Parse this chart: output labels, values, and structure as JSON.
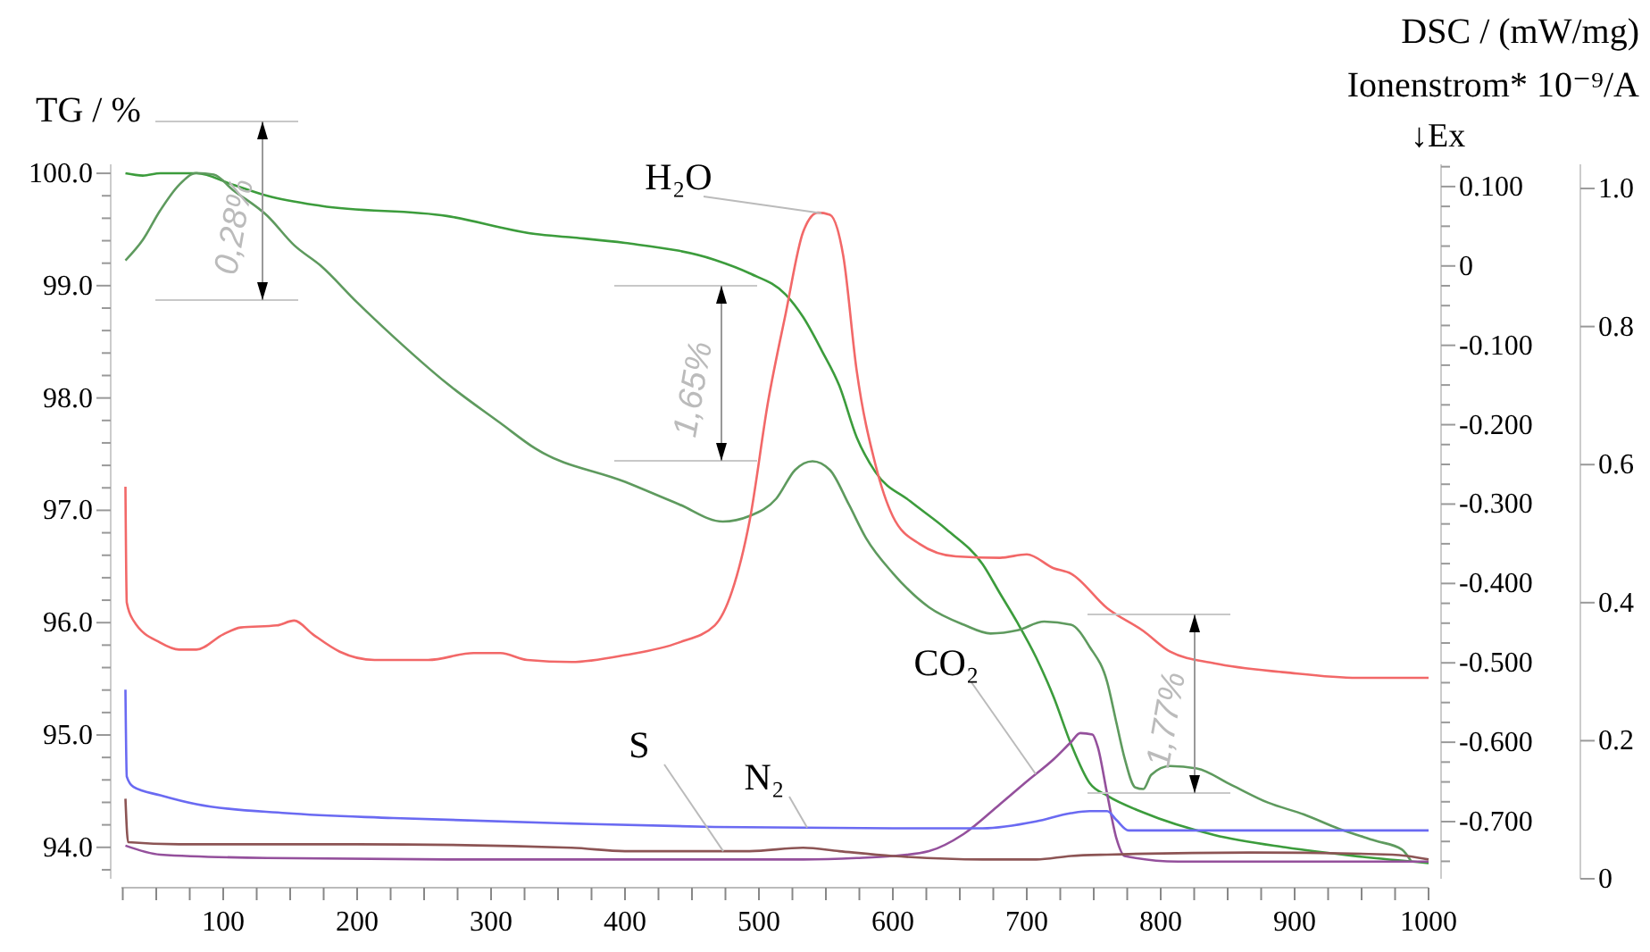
{
  "chart_data": {
    "type": "line",
    "ylabel": "TG / %",
    "y2label": "DSC / (mW/mg)",
    "y3label": "Ionenstrom* 10⁻⁹/A",
    "xlim": [
      24,
      1000
    ],
    "ylim": [
      93.72,
      100.08
    ],
    "y2lim": [
      -0.772,
      0.128
    ],
    "y3lim": [
      0,
      1.035
    ],
    "xticks": [
      {
        "value": 25,
        "label": null
      },
      {
        "value": 50,
        "label": null
      },
      {
        "value": 75,
        "label": null
      },
      100,
      {
        "value": 125,
        "label": null
      },
      {
        "value": 150,
        "label": null
      },
      {
        "value": 175,
        "label": null
      },
      200,
      {
        "value": 225,
        "label": null
      },
      {
        "value": 250,
        "label": null
      },
      {
        "value": 275,
        "label": null
      },
      300,
      {
        "value": 325,
        "label": null
      },
      {
        "value": 350,
        "label": null
      },
      {
        "value": 375,
        "label": null
      },
      400,
      {
        "value": 425,
        "label": null
      },
      {
        "value": 450,
        "label": null
      },
      {
        "value": 475,
        "label": null
      },
      500,
      {
        "value": 525,
        "label": null
      },
      {
        "value": 550,
        "label": null
      },
      {
        "value": 575,
        "label": null
      },
      600,
      {
        "value": 625,
        "label": null
      },
      {
        "value": 650,
        "label": null
      },
      {
        "value": 675,
        "label": null
      },
      700,
      {
        "value": 725,
        "label": null
      },
      {
        "value": 750,
        "label": null
      },
      {
        "value": 775,
        "label": null
      },
      800,
      {
        "value": 825,
        "label": null
      },
      {
        "value": 850,
        "label": null
      },
      {
        "value": 875,
        "label": null
      },
      900,
      {
        "value": 925,
        "label": null
      },
      {
        "value": 950,
        "label": null
      },
      {
        "value": 975,
        "label": null
      },
      1000
    ],
    "yticks": [
      {
        "value": 93.8,
        "label": null
      },
      {
        "value": 94,
        "label": "94.0"
      },
      {
        "value": 94.2,
        "label": null
      },
      {
        "value": 94.4,
        "label": null
      },
      {
        "value": 94.6,
        "label": null
      },
      {
        "value": 94.8,
        "label": null
      },
      {
        "value": 95,
        "label": "95.0"
      },
      {
        "value": 95.2,
        "label": null
      },
      {
        "value": 95.4,
        "label": null
      },
      {
        "value": 95.6,
        "label": null
      },
      {
        "value": 95.8,
        "label": null
      },
      {
        "value": 96,
        "label": "96.0"
      },
      {
        "value": 96.2,
        "label": null
      },
      {
        "value": 96.4,
        "label": null
      },
      {
        "value": 96.6,
        "label": null
      },
      {
        "value": 96.8,
        "label": null
      },
      {
        "value": 97,
        "label": "97.0"
      },
      {
        "value": 97.2,
        "label": null
      },
      {
        "value": 97.4,
        "label": null
      },
      {
        "value": 97.6,
        "label": null
      },
      {
        "value": 97.8,
        "label": null
      },
      {
        "value": 98,
        "label": "98.0"
      },
      {
        "value": 98.2,
        "label": null
      },
      {
        "value": 98.4,
        "label": null
      },
      {
        "value": 98.6,
        "label": null
      },
      {
        "value": 98.8,
        "label": null
      },
      {
        "value": 99,
        "label": "99.0"
      },
      {
        "value": 99.2,
        "label": null
      },
      {
        "value": 99.4,
        "label": null
      },
      {
        "value": 99.6,
        "label": null
      },
      {
        "value": 99.8,
        "label": null
      },
      {
        "value": 100,
        "label": "100.0"
      }
    ],
    "y2ticks": [
      {
        "value": -0.75,
        "label": null
      },
      {
        "value": -0.725,
        "label": null
      },
      {
        "value": -0.7,
        "label": "-0.700"
      },
      {
        "value": -0.675,
        "label": null
      },
      {
        "value": -0.65,
        "label": null
      },
      {
        "value": -0.625,
        "label": null
      },
      {
        "value": -0.6,
        "label": "-0.600"
      },
      {
        "value": -0.575,
        "label": null
      },
      {
        "value": -0.55,
        "label": null
      },
      {
        "value": -0.525,
        "label": null
      },
      {
        "value": -0.5,
        "label": "-0.500"
      },
      {
        "value": -0.475,
        "label": null
      },
      {
        "value": -0.45,
        "label": null
      },
      {
        "value": -0.425,
        "label": null
      },
      {
        "value": -0.4,
        "label": "-0.400"
      },
      {
        "value": -0.375,
        "label": null
      },
      {
        "value": -0.35,
        "label": null
      },
      {
        "value": -0.325,
        "label": null
      },
      {
        "value": -0.3,
        "label": "-0.300"
      },
      {
        "value": -0.275,
        "label": null
      },
      {
        "value": -0.25,
        "label": null
      },
      {
        "value": -0.225,
        "label": null
      },
      {
        "value": -0.2,
        "label": "-0.200"
      },
      {
        "value": -0.175,
        "label": null
      },
      {
        "value": -0.15,
        "label": null
      },
      {
        "value": -0.125,
        "label": null
      },
      {
        "value": -0.1,
        "label": "-0.100"
      },
      {
        "value": -0.075,
        "label": null
      },
      {
        "value": -0.05,
        "label": null
      },
      {
        "value": -0.025,
        "label": null
      },
      0,
      {
        "value": 0.025,
        "label": null
      },
      {
        "value": 0.05,
        "label": null
      },
      {
        "value": 0.075,
        "label": null
      },
      {
        "value": 0.1,
        "label": "0.100"
      },
      {
        "value": 0.125,
        "label": null
      }
    ],
    "y3ticks": [
      0,
      {
        "value": 0.2,
        "label": "0.2"
      },
      {
        "value": 0.4,
        "label": "0.4"
      },
      {
        "value": 0.6,
        "label": "0.6"
      },
      {
        "value": 0.8,
        "label": "0.8"
      },
      {
        "value": 1,
        "label": "1.0"
      }
    ],
    "series": [
      {
        "color": "#3c9c3c",
        "x": [
          27,
          40,
          53,
          80,
          107,
          133,
          173,
          267,
          333,
          360,
          400,
          467,
          493,
          520,
          533,
          547,
          560,
          573,
          587,
          613,
          640,
          667,
          680,
          693,
          707,
          720,
          733,
          747,
          760,
          787,
          840,
          893,
          947,
          1000
        ],
        "values": [
          100.0,
          99.98,
          100.0,
          100.0,
          99.9,
          99.8,
          99.71,
          99.62,
          99.46,
          99.43,
          99.38,
          99.23,
          99.11,
          98.92,
          98.72,
          98.42,
          98.11,
          97.65,
          97.34,
          97.08,
          96.83,
          96.52,
          96.26,
          96.0,
          95.69,
          95.34,
          94.92,
          94.57,
          94.46,
          94.31,
          94.11,
          94.0,
          93.92,
          93.86
        ]
      },
      {
        "color": "#5e9a5e",
        "axis": "y2",
        "x": [
          27,
          40,
          53,
          67,
          80,
          93,
          107,
          133,
          153,
          173,
          200,
          227,
          267,
          307,
          333,
          400,
          440,
          473,
          493,
          513,
          527,
          540,
          553,
          567,
          580,
          600,
          627,
          653,
          673,
          693,
          713,
          733,
          747,
          760,
          767,
          773,
          781,
          787,
          793,
          807,
          827,
          853,
          880,
          907,
          933,
          960,
          980,
          987
        ],
        "values": [
          0.007,
          0.033,
          0.07,
          0.102,
          0.117,
          0.115,
          0.096,
          0.063,
          0.026,
          0.0,
          -0.046,
          -0.089,
          -0.148,
          -0.198,
          -0.23,
          -0.272,
          -0.3,
          -0.322,
          -0.315,
          -0.293,
          -0.257,
          -0.246,
          -0.257,
          -0.3,
          -0.343,
          -0.387,
          -0.43,
          -0.452,
          -0.463,
          -0.459,
          -0.448,
          -0.452,
          -0.48,
          -0.524,
          -0.576,
          -0.62,
          -0.657,
          -0.659,
          -0.641,
          -0.63,
          -0.633,
          -0.654,
          -0.676,
          -0.691,
          -0.709,
          -0.724,
          -0.735,
          -0.75
        ]
      },
      {
        "name": "H₂O",
        "color": "#f26868",
        "axis": "y3",
        "x": [
          27,
          28,
          33,
          53,
          67,
          80,
          100,
          113,
          140,
          153,
          167,
          187,
          213,
          253,
          287,
          307,
          327,
          360,
          400,
          440,
          467,
          480,
          493,
          507,
          520,
          533,
          544,
          553,
          563,
          573,
          587,
          600,
          620,
          647,
          680,
          700,
          720,
          733,
          760,
          787,
          807,
          840,
          893,
          947,
          1000
        ],
        "values": [
          0.568,
          0.4,
          0.374,
          0.342,
          0.332,
          0.332,
          0.354,
          0.364,
          0.367,
          0.374,
          0.354,
          0.329,
          0.317,
          0.317,
          0.327,
          0.327,
          0.317,
          0.314,
          0.324,
          0.342,
          0.367,
          0.417,
          0.518,
          0.693,
          0.819,
          0.937,
          0.965,
          0.962,
          0.902,
          0.736,
          0.6,
          0.525,
          0.485,
          0.467,
          0.465,
          0.47,
          0.45,
          0.442,
          0.392,
          0.359,
          0.329,
          0.312,
          0.299,
          0.291,
          0.291
        ]
      },
      {
        "name": "CO₂",
        "color": "#94509c",
        "axis": "y3",
        "x": [
          27,
          53,
          133,
          267,
          333,
          533,
          573,
          600,
          627,
          653,
          680,
          700,
          720,
          733,
          740,
          749,
          753,
          760,
          767,
          773,
          813,
          1000
        ],
        "values": [
          0.048,
          0.035,
          0.03,
          0.028,
          0.028,
          0.028,
          0.03,
          0.033,
          0.04,
          0.065,
          0.108,
          0.141,
          0.173,
          0.198,
          0.211,
          0.209,
          0.191,
          0.123,
          0.058,
          0.033,
          0.025,
          0.025
        ]
      },
      {
        "name": "N₂",
        "color": "#6a6af2",
        "axis": "y3",
        "x": [
          27,
          28,
          33,
          53,
          80,
          147,
          227,
          360,
          467,
          600,
          667,
          707,
          733,
          747,
          760,
          767,
          776,
          867,
          1000
        ],
        "values": [
          0.274,
          0.148,
          0.133,
          0.121,
          0.108,
          0.095,
          0.088,
          0.08,
          0.075,
          0.073,
          0.073,
          0.083,
          0.095,
          0.098,
          0.098,
          0.085,
          0.07,
          0.07,
          0.07
        ]
      },
      {
        "name": "S",
        "color": "#8c5454",
        "axis": "y3",
        "x": [
          27,
          29,
          67,
          200,
          360,
          400,
          493,
          533,
          560,
          600,
          667,
          707,
          733,
          760,
          867,
          973,
          1000
        ],
        "values": [
          0.116,
          0.053,
          0.05,
          0.05,
          0.045,
          0.04,
          0.04,
          0.045,
          0.04,
          0.033,
          0.028,
          0.028,
          0.033,
          0.035,
          0.038,
          0.035,
          0.028
        ]
      }
    ],
    "annotations": [
      "↓Ex",
      "0,28%",
      "1,65%",
      "1,77%"
    ]
  }
}
